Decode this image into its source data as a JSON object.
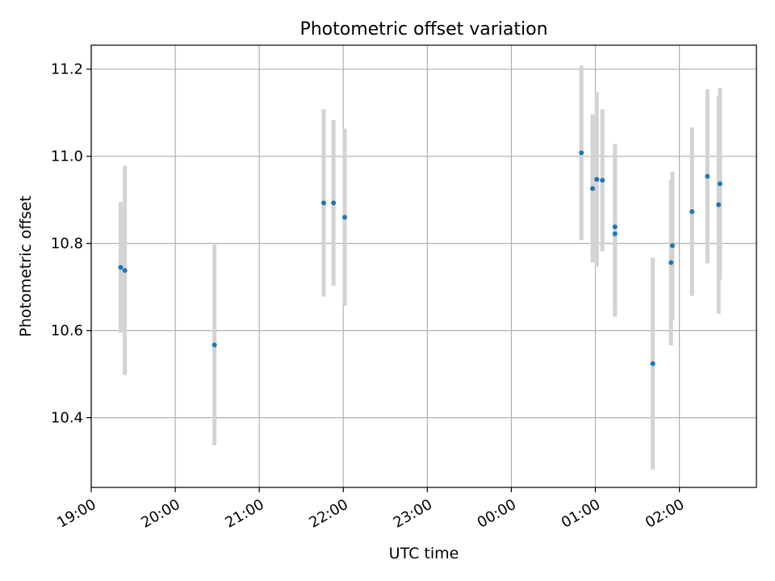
{
  "chart_data": {
    "type": "scatter",
    "title": "Photometric offset variation",
    "xlabel": "UTC time",
    "ylabel": "Photometric offset",
    "x_is_time": true,
    "xlim": [
      "19:00",
      "02:55"
    ],
    "ylim": [
      10.24,
      11.255
    ],
    "x_tick_labels": [
      "19:00",
      "20:00",
      "21:00",
      "22:00",
      "23:00",
      "00:00",
      "01:00",
      "02:00"
    ],
    "y_tick_labels": [
      "10.4",
      "10.6",
      "10.8",
      "11.0",
      "11.2"
    ],
    "y_ticks": [
      10.4,
      10.6,
      10.8,
      11.0,
      11.2
    ],
    "grid": true,
    "point_color": "#1f77b4",
    "errorbar_color": "#d3d3d3",
    "points": [
      {
        "x": "19:21",
        "y": 10.745,
        "err": 0.15
      },
      {
        "x": "19:24",
        "y": 10.738,
        "err": 0.24
      },
      {
        "x": "20:28",
        "y": 10.567,
        "err": 0.23
      },
      {
        "x": "21:46",
        "y": 10.893,
        "err": 0.215
      },
      {
        "x": "21:53",
        "y": 10.893,
        "err": 0.19
      },
      {
        "x": "22:01",
        "y": 10.86,
        "err": 0.203
      },
      {
        "x": "00:50",
        "y": 11.008,
        "err": 0.2
      },
      {
        "x": "00:58",
        "y": 10.926,
        "err": 0.17
      },
      {
        "x": "01:01",
        "y": 10.947,
        "err": 0.2
      },
      {
        "x": "01:05",
        "y": 10.945,
        "err": 0.163
      },
      {
        "x": "01:14",
        "y": 10.838,
        "err": 0.19
      },
      {
        "x": "01:14",
        "y": 10.822,
        "err": 0.19
      },
      {
        "x": "01:41",
        "y": 10.524,
        "err": 0.243
      },
      {
        "x": "01:54",
        "y": 10.756,
        "err": 0.19
      },
      {
        "x": "01:55",
        "y": 10.795,
        "err": 0.17
      },
      {
        "x": "02:09",
        "y": 10.873,
        "err": 0.193
      },
      {
        "x": "02:20",
        "y": 10.954,
        "err": 0.2
      },
      {
        "x": "02:28",
        "y": 10.889,
        "err": 0.25
      },
      {
        "x": "02:29",
        "y": 10.937,
        "err": 0.22
      }
    ]
  }
}
